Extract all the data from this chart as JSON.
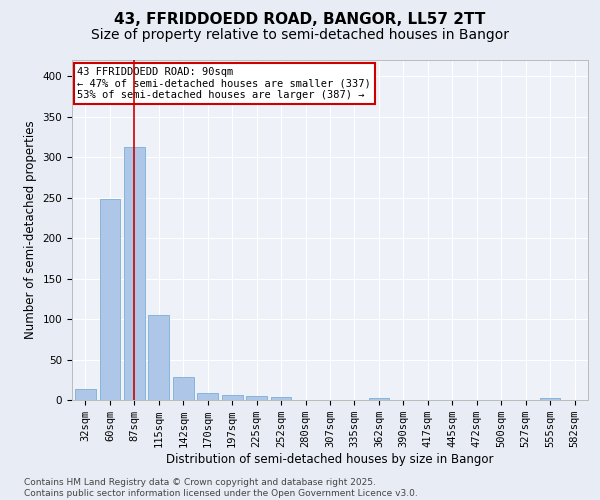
{
  "title_line1": "43, FFRIDDOEDD ROAD, BANGOR, LL57 2TT",
  "title_line2": "Size of property relative to semi-detached houses in Bangor",
  "xlabel": "Distribution of semi-detached houses by size in Bangor",
  "ylabel": "Number of semi-detached properties",
  "categories": [
    "32sqm",
    "60sqm",
    "87sqm",
    "115sqm",
    "142sqm",
    "170sqm",
    "197sqm",
    "225sqm",
    "252sqm",
    "280sqm",
    "307sqm",
    "335sqm",
    "362sqm",
    "390sqm",
    "417sqm",
    "445sqm",
    "472sqm",
    "500sqm",
    "527sqm",
    "555sqm",
    "582sqm"
  ],
  "values": [
    14,
    248,
    313,
    105,
    28,
    9,
    6,
    5,
    4,
    0,
    0,
    0,
    3,
    0,
    0,
    0,
    0,
    0,
    0,
    2,
    0
  ],
  "bar_color": "#aec6e8",
  "bar_edge_color": "#7aafd4",
  "vline_x_index": 2.0,
  "vline_color": "#cc0000",
  "annotation_text": "43 FFRIDDOEDD ROAD: 90sqm\n← 47% of semi-detached houses are smaller (337)\n53% of semi-detached houses are larger (387) →",
  "annotation_box_color": "#ffffff",
  "annotation_box_edge_color": "#cc0000",
  "ylim": [
    0,
    420
  ],
  "yticks": [
    0,
    50,
    100,
    150,
    200,
    250,
    300,
    350,
    400
  ],
  "background_color": "#e8edf5",
  "plot_background_color": "#eef2f8",
  "footer_text": "Contains HM Land Registry data © Crown copyright and database right 2025.\nContains public sector information licensed under the Open Government Licence v3.0.",
  "title_fontsize": 11,
  "subtitle_fontsize": 10,
  "axis_label_fontsize": 8.5,
  "tick_fontsize": 7.5,
  "annotation_fontsize": 7.5,
  "footer_fontsize": 6.5
}
